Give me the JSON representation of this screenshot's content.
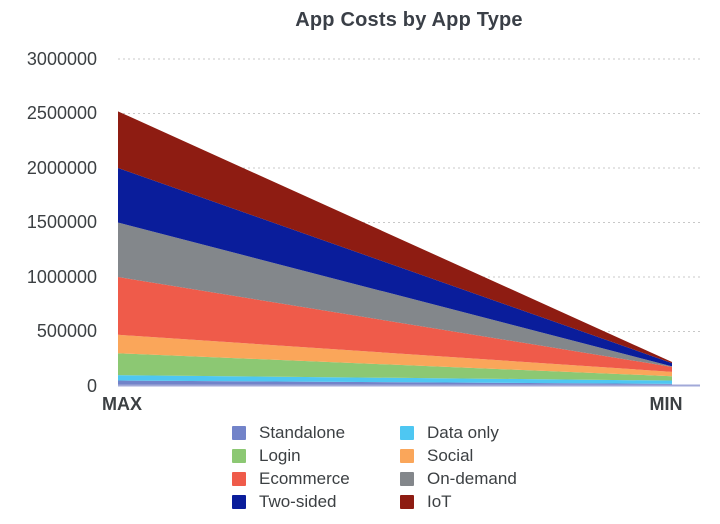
{
  "chart_data": {
    "type": "area",
    "stacked": true,
    "title": "App Costs by App Type",
    "categories": [
      "MAX",
      "MIN"
    ],
    "series": [
      {
        "name": "Standalone",
        "color": "#7283c9",
        "values": [
          50000,
          20000
        ]
      },
      {
        "name": "Data only",
        "color": "#4ec7f2",
        "values": [
          50000,
          30000
        ]
      },
      {
        "name": "Login",
        "color": "#8cc873",
        "values": [
          200000,
          40000
        ]
      },
      {
        "name": "Social",
        "color": "#faa65a",
        "values": [
          170000,
          40000
        ]
      },
      {
        "name": "Ecommerce",
        "color": "#ef5b4a",
        "values": [
          530000,
          45000
        ]
      },
      {
        "name": "On-demand",
        "color": "#83878b",
        "values": [
          500000,
          5000
        ]
      },
      {
        "name": "Two-sided",
        "color": "#0a1d9b",
        "values": [
          500000,
          30000
        ]
      },
      {
        "name": "IoT",
        "color": "#8e1c12",
        "values": [
          520000,
          10000
        ]
      }
    ],
    "stack_totals": {
      "MAX": 2520000,
      "MIN": 220000
    },
    "ylim": [
      0,
      3000000
    ],
    "ytick_step": 500000,
    "yticks": [
      "0",
      "500000",
      "1000000",
      "1500000",
      "2000000",
      "2500000",
      "3000000"
    ],
    "grid": "dotted horizontal gridlines",
    "gridline_color": "#c8c8c8",
    "baseline_color": "#a2a9d8",
    "legend_position": "bottom",
    "legend_columns": 2,
    "text_color": "#3c4043"
  }
}
